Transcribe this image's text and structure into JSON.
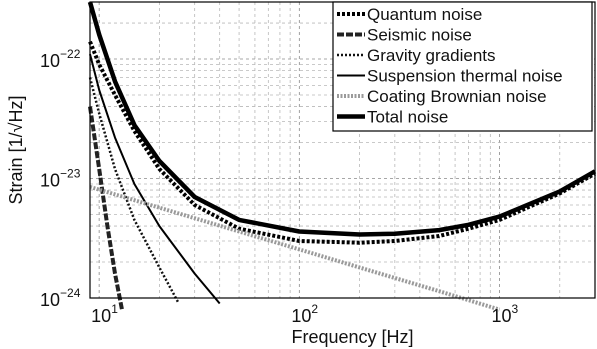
{
  "chart_data": {
    "type": "line",
    "title": "",
    "xlabel": "Frequency [Hz]",
    "ylabel": "Strain [1/√Hz]",
    "xscale": "log",
    "yscale": "log",
    "xlim": [
      9,
      3000
    ],
    "ylim": [
      1e-24,
      3e-22
    ],
    "grid": true,
    "legend_position": "top-right",
    "x_ticks": [
      {
        "base": "10",
        "exp": "1"
      },
      {
        "base": "10",
        "exp": "2"
      },
      {
        "base": "10",
        "exp": "3"
      }
    ],
    "y_ticks": [
      {
        "base": "10",
        "exp": "−24"
      },
      {
        "base": "10",
        "exp": "−23"
      },
      {
        "base": "10",
        "exp": "−22"
      }
    ],
    "series": [
      {
        "name": "Quantum noise",
        "style": "thick-dotted",
        "x": [
          9,
          10,
          12,
          15,
          20,
          30,
          50,
          100,
          200,
          300,
          500,
          700,
          1000,
          2000,
          3000
        ],
        "y": [
          1.4e-22,
          9e-23,
          5e-23,
          2.5e-23,
          1.2e-23,
          6e-24,
          3.8e-24,
          3e-24,
          2.9e-24,
          3e-24,
          3.3e-24,
          3.8e-24,
          4.5e-24,
          7.5e-24,
          1.1e-23
        ]
      },
      {
        "name": "Seismic noise",
        "style": "thick-dashed",
        "x": [
          9,
          10,
          11,
          12,
          13
        ],
        "y": [
          4e-23,
          1.2e-23,
          4e-24,
          1.6e-24,
          8e-25
        ]
      },
      {
        "name": "Gravity gradients",
        "style": "dotted",
        "x": [
          9,
          10,
          12,
          15,
          20,
          25
        ],
        "y": [
          7e-23,
          3.5e-23,
          1.2e-23,
          4.5e-24,
          1.8e-24,
          9e-25
        ]
      },
      {
        "name": "Suspension thermal noise",
        "style": "solid",
        "x": [
          9,
          10,
          12,
          15,
          20,
          30,
          40
        ],
        "y": [
          1.1e-22,
          5.5e-23,
          2.2e-23,
          9e-24,
          4e-24,
          1.6e-24,
          9e-25
        ]
      },
      {
        "name": "Coating Brownian noise",
        "style": "grey-dotted",
        "x": [
          9,
          20,
          50,
          100,
          200,
          500,
          1000
        ],
        "y": [
          8.5e-24,
          5.7e-24,
          3.6e-24,
          2.55e-24,
          1.8e-24,
          1.14e-24,
          8e-25
        ]
      },
      {
        "name": "Total noise",
        "style": "thick-solid",
        "x": [
          9,
          10,
          12,
          15,
          20,
          30,
          50,
          100,
          200,
          300,
          500,
          700,
          1000,
          2000,
          3000
        ],
        "y": [
          3e-22,
          1.6e-22,
          6.5e-23,
          2.8e-23,
          1.4e-23,
          7e-24,
          4.5e-24,
          3.6e-24,
          3.4e-24,
          3.45e-24,
          3.7e-24,
          4.1e-24,
          4.8e-24,
          7.8e-24,
          1.15e-23
        ]
      }
    ]
  }
}
